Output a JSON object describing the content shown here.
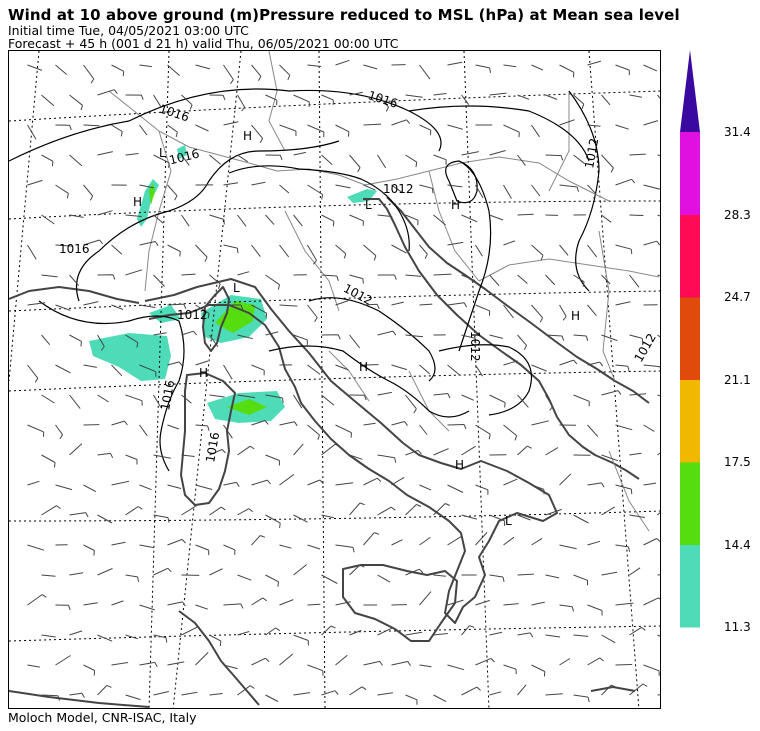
{
  "header": {
    "title": "Wind  at 10 above ground (m)Pressure reduced to MSL (hPa)  at Mean sea level",
    "initial_time": "Initial time  Tue, 04/05/2021  03:00 UTC",
    "forecast": "Forecast  +  45 h  (001 d 21 h)  valid Thu, 06/05/2021 00:00 UTC"
  },
  "footer": "Moloch Model, CNR-ISAC, Italy",
  "legend": {
    "unit_hint": "wind speed",
    "levels": [
      "11.3",
      "14.4",
      "17.5",
      "21.1",
      "24.7",
      "28.3",
      "31.4"
    ],
    "colors": [
      "#4ddbb8",
      "#55dd10",
      "#f0b800",
      "#e04a0a",
      "#ff0a55",
      "#e010e0",
      "#3a0aa0"
    ]
  },
  "map": {
    "isobar_labels": [
      {
        "text": "1016",
        "id": "a"
      },
      {
        "text": "1016",
        "id": "b"
      },
      {
        "text": "1016",
        "id": "c"
      },
      {
        "text": "1016",
        "id": "d"
      },
      {
        "text": "1016",
        "id": "e"
      },
      {
        "text": "1012",
        "id": "f"
      },
      {
        "text": "1012",
        "id": "g"
      },
      {
        "text": "1012",
        "id": "h"
      },
      {
        "text": "1012",
        "id": "i"
      },
      {
        "text": "1012",
        "id": "j"
      },
      {
        "text": "1016",
        "id": "k"
      },
      {
        "text": "1012",
        "id": "l"
      }
    ],
    "pressure_centers": [
      {
        "text": "H"
      },
      {
        "text": "H"
      },
      {
        "text": "H"
      },
      {
        "text": "H"
      },
      {
        "text": "H"
      },
      {
        "text": "H"
      },
      {
        "text": "H"
      },
      {
        "text": "L"
      },
      {
        "text": "L"
      },
      {
        "text": "L"
      },
      {
        "text": "L"
      }
    ]
  }
}
